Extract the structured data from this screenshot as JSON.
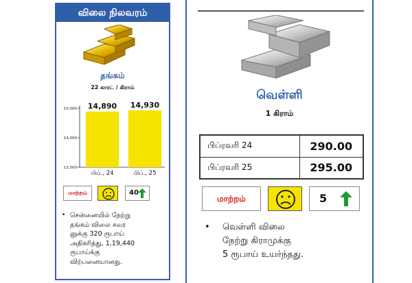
{
  "left": {
    "header": "விலை நிலவரம்",
    "metal_label": "தங்கம்",
    "metal_sub": "22 காரட் / கிராம்",
    "change_label": "மாற்றம்",
    "change_value": "40",
    "note": "சென்னையில் நேற்று\nதங்கம் விலை சவர\nனுக்கு 320 ரூபாய்\nஅதிகரித்து, 1,19,440\nரூபாய்க்கு\nவிற்பனையானது.",
    "bullet": "•"
  },
  "chart_data": {
    "type": "bar",
    "categories": [
      "பிப்., 24",
      "பிப்., 25"
    ],
    "values": [
      14890,
      14930
    ],
    "value_labels": [
      "14,890",
      "14,930"
    ],
    "ylim": [
      13000,
      15000
    ],
    "yticks": [
      13000,
      14000,
      15000
    ],
    "ytick_labels": [
      "13,000",
      "14,000",
      "15,000"
    ],
    "bar_color": "#f7e300",
    "grid": false
  },
  "right": {
    "metal_label": "வெள்ளி",
    "metal_sub": "1 கிராம்",
    "rows": [
      {
        "date": "பிப்ரவரி 24",
        "price": "290.00"
      },
      {
        "date": "பிப்ரவரி 25",
        "price": "295.00"
      }
    ],
    "change_label": "மாற்றம்",
    "change_value": "5",
    "note": "வெள்ளி விலை\nநேற்று கிராமுக்கு\n5 ரூபாய் உயர்ந்தது.",
    "bullet": "•"
  },
  "colors": {
    "accent_blue": "#2f5ea8",
    "gold_yellow": "#f7e300",
    "change_red": "#d0141b",
    "up_green": "#1f9a2f"
  },
  "icons": {
    "gold": "gold-bars-icon",
    "silver": "silver-bars-icon",
    "face": "sad-face-icon",
    "arrow": "up-arrow-icon"
  }
}
